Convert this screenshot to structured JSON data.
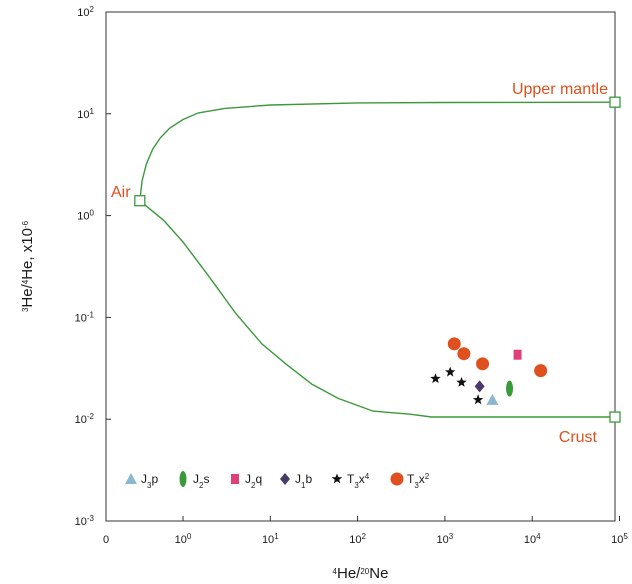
{
  "chart_data": {
    "type": "scatter",
    "title": "",
    "x_axis": {
      "label_parts": [
        {
          "t": "4",
          "sup": true
        },
        {
          "t": "He/"
        },
        {
          "t": "20",
          "sup": true
        },
        {
          "t": "Ne"
        }
      ],
      "scale": "log",
      "tick_labels": [
        {
          "text": "0",
          "value": null
        },
        {
          "base": "10",
          "exp": "0",
          "value": 1
        },
        {
          "base": "10",
          "exp": "1",
          "value": 10
        },
        {
          "base": "10",
          "exp": "2",
          "value": 100
        },
        {
          "base": "10",
          "exp": "3",
          "value": 1000
        },
        {
          "base": "10",
          "exp": "4",
          "value": 10000
        },
        {
          "base": "10",
          "exp": "5",
          "value": 100000
        }
      ]
    },
    "y_axis": {
      "label_parts": [
        {
          "t": "3",
          "sup": true
        },
        {
          "t": "He/"
        },
        {
          "t": "4",
          "sup": true
        },
        {
          "t": "He, x10"
        },
        {
          "t": "-6",
          "sup": true
        }
      ],
      "scale": "log",
      "ylim": [
        0.001,
        100
      ],
      "tick_labels": [
        {
          "base": "10",
          "exp": "2",
          "value": 100
        },
        {
          "base": "10",
          "exp": "1",
          "value": 10
        },
        {
          "base": "10",
          "exp": "0",
          "value": 1
        },
        {
          "base": "10",
          "exp": "-1",
          "value": 0.1
        },
        {
          "base": "10",
          "exp": "-2",
          "value": 0.01
        },
        {
          "base": "10",
          "exp": "-3",
          "value": 0.001
        }
      ]
    },
    "grid": false,
    "annotations": [
      {
        "text": "Upper mantle",
        "color": "#e0501e"
      },
      {
        "text": "Air",
        "color": "#e0501e"
      },
      {
        "text": "Crust",
        "color": "#e0501e"
      }
    ],
    "end_members": [
      {
        "name": "Air",
        "x": 0.32,
        "y": 1.4
      },
      {
        "name": "Upper mantle",
        "x": 100000,
        "y": 13
      },
      {
        "name": "Crust",
        "x": 100000,
        "y": 0.0105
      }
    ],
    "mixing_curves": [
      {
        "name": "Air–Upper mantle",
        "color": "#3a9a3a",
        "points": [
          [
            0.32,
            1.4
          ],
          [
            0.34,
            2.2
          ],
          [
            0.38,
            3.2
          ],
          [
            0.45,
            4.5
          ],
          [
            0.55,
            5.8
          ],
          [
            0.7,
            7.2
          ],
          [
            1,
            8.8
          ],
          [
            1.5,
            10.2
          ],
          [
            3,
            11.3
          ],
          [
            10,
            12.2
          ],
          [
            100,
            12.8
          ],
          [
            1000,
            12.9
          ],
          [
            100000,
            13
          ]
        ]
      },
      {
        "name": "Air–Crust",
        "color": "#3a9a3a",
        "points": [
          [
            0.32,
            1.4
          ],
          [
            0.6,
            0.9
          ],
          [
            1,
            0.55
          ],
          [
            2,
            0.25
          ],
          [
            4,
            0.11
          ],
          [
            8,
            0.055
          ],
          [
            15,
            0.035
          ],
          [
            30,
            0.022
          ],
          [
            60,
            0.016
          ],
          [
            150,
            0.012
          ],
          [
            400,
            0.0112
          ],
          [
            700,
            0.0105
          ],
          [
            100000,
            0.0105
          ]
        ]
      }
    ],
    "series": [
      {
        "name_parts": [
          {
            "t": "J"
          },
          {
            "t": "3",
            "sub": true
          },
          {
            "t": "p"
          }
        ],
        "marker": "triangle",
        "color": "#8ab8d0",
        "points": [
          [
            3500,
            0.0155
          ]
        ]
      },
      {
        "name_parts": [
          {
            "t": "J"
          },
          {
            "t": "2",
            "sub": true
          },
          {
            "t": "s"
          }
        ],
        "marker": "ellipse",
        "color": "#3a9a3a",
        "points": [
          [
            5500,
            0.02
          ]
        ]
      },
      {
        "name_parts": [
          {
            "t": "J"
          },
          {
            "t": "2",
            "sub": true
          },
          {
            "t": "q"
          }
        ],
        "marker": "square",
        "color": "#e0407a",
        "points": [
          [
            6800,
            0.043
          ]
        ]
      },
      {
        "name_parts": [
          {
            "t": "J"
          },
          {
            "t": "1",
            "sub": true
          },
          {
            "t": "b"
          }
        ],
        "marker": "diamond",
        "color": "#4a3a6a",
        "points": [
          [
            2500,
            0.021
          ]
        ]
      },
      {
        "name_parts": [
          {
            "t": "T"
          },
          {
            "t": "3",
            "sub": true
          },
          {
            "t": "x"
          },
          {
            "t": "4",
            "sup": true
          }
        ],
        "marker": "star",
        "color": "#111111",
        "points": [
          [
            780,
            0.025
          ],
          [
            1150,
            0.029
          ],
          [
            1550,
            0.023
          ],
          [
            2400,
            0.0155
          ]
        ]
      },
      {
        "name_parts": [
          {
            "t": "T"
          },
          {
            "t": "3",
            "sub": true
          },
          {
            "t": "x"
          },
          {
            "t": "2",
            "sup": true
          }
        ],
        "marker": "circle",
        "color": "#e0501e",
        "points": [
          [
            1280,
            0.055
          ],
          [
            1650,
            0.044
          ],
          [
            2700,
            0.035
          ],
          [
            12500,
            0.03
          ]
        ]
      }
    ],
    "legend_position": "bottom-left (inside)"
  }
}
